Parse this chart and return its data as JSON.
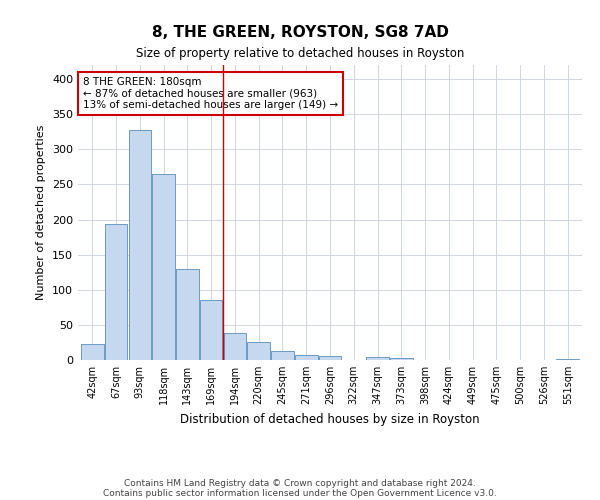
{
  "title": "8, THE GREEN, ROYSTON, SG8 7AD",
  "subtitle": "Size of property relative to detached houses in Royston",
  "xlabel": "Distribution of detached houses by size in Royston",
  "ylabel": "Number of detached properties",
  "categories": [
    "42sqm",
    "67sqm",
    "93sqm",
    "118sqm",
    "143sqm",
    "169sqm",
    "194sqm",
    "220sqm",
    "245sqm",
    "271sqm",
    "296sqm",
    "322sqm",
    "347sqm",
    "373sqm",
    "398sqm",
    "424sqm",
    "449sqm",
    "475sqm",
    "500sqm",
    "526sqm",
    "551sqm"
  ],
  "values": [
    23,
    193,
    328,
    265,
    130,
    85,
    38,
    25,
    13,
    7,
    5,
    0,
    4,
    3,
    0,
    0,
    0,
    0,
    0,
    0,
    2
  ],
  "bar_color": "#c5d8f0",
  "bar_edge_color": "#5b8db8",
  "background_color": "#ffffff",
  "grid_color": "#c8d0dc",
  "annotation_line1": "8 THE GREEN: 180sqm",
  "annotation_line2": "← 87% of detached houses are smaller (963)",
  "annotation_line3": "13% of semi-detached houses are larger (149) →",
  "vline_color": "#cc0000",
  "vline_x_index": 5.5,
  "ylim": [
    0,
    420
  ],
  "yticks": [
    0,
    50,
    100,
    150,
    200,
    250,
    300,
    350,
    400
  ],
  "footer_line1": "Contains HM Land Registry data © Crown copyright and database right 2024.",
  "footer_line2": "Contains public sector information licensed under the Open Government Licence v3.0."
}
